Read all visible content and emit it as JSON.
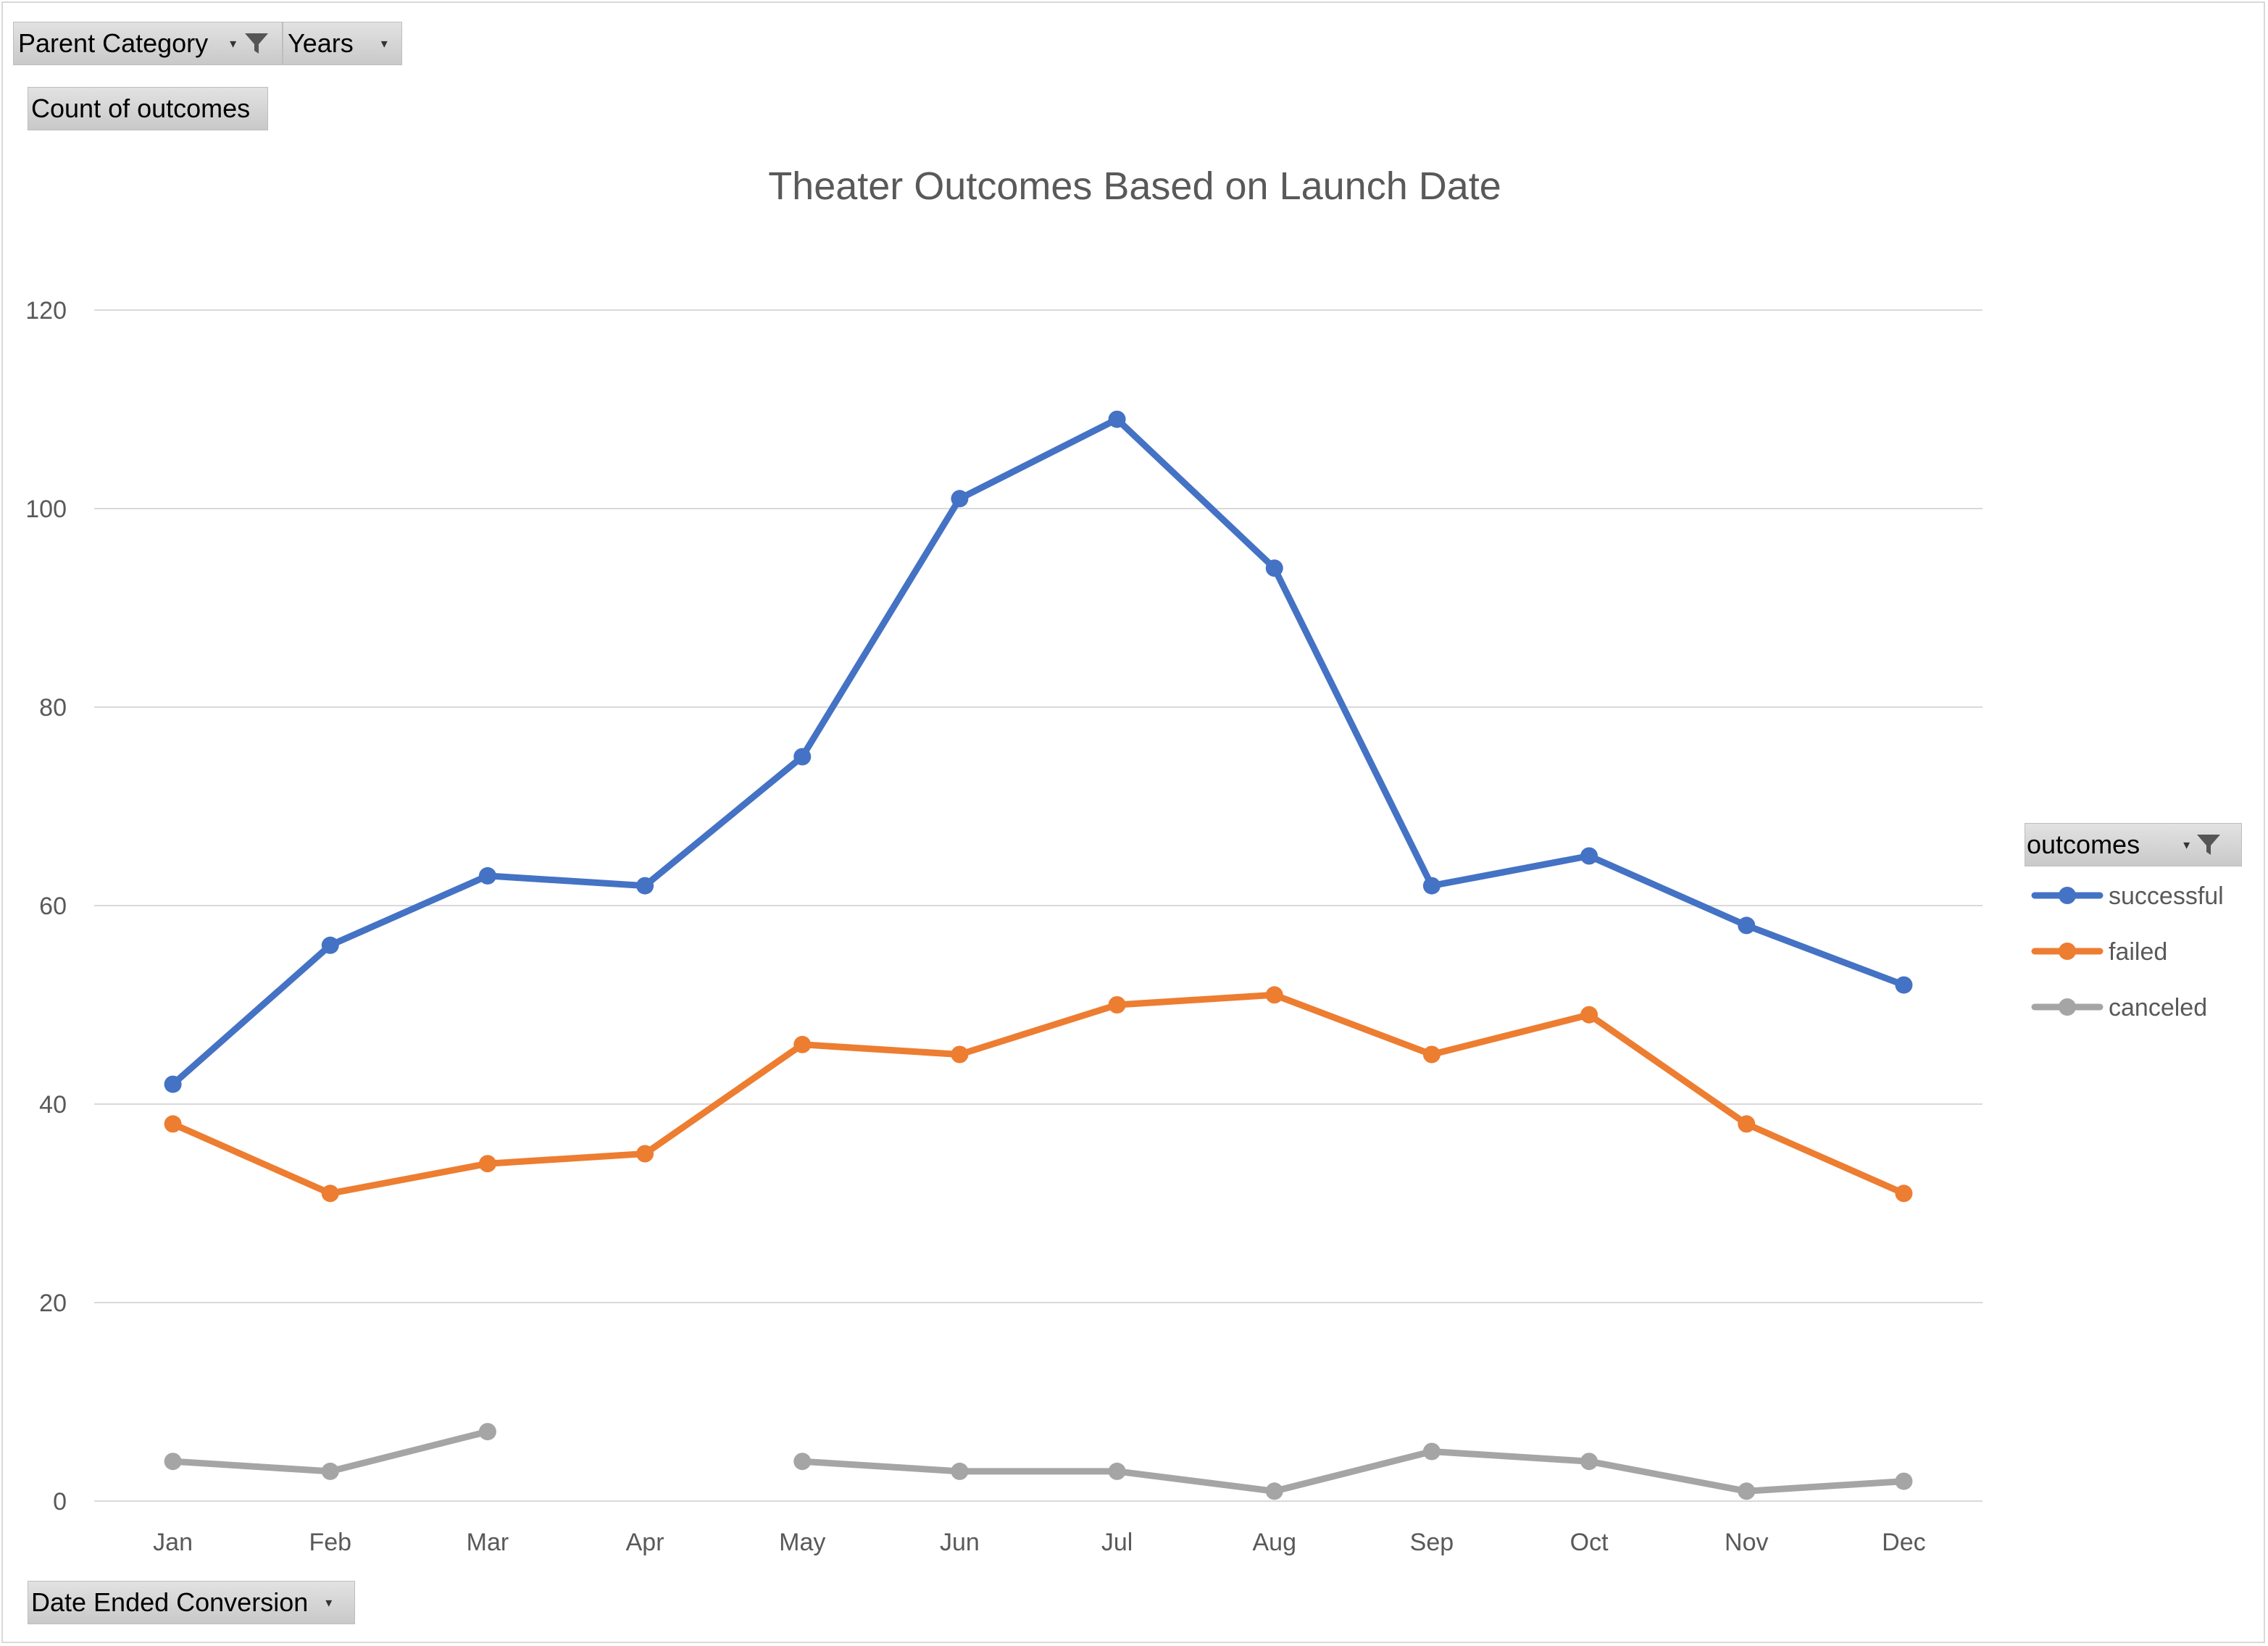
{
  "field_buttons": {
    "parent_category": "Parent Category",
    "years": "Years",
    "values_field": "Count of outcomes",
    "axis_field": "Date Ended Conversion",
    "legend_field": "outcomes"
  },
  "chart_data": {
    "type": "line",
    "title": "Theater Outcomes Based on Launch Date",
    "xlabel": "",
    "ylabel": "",
    "categories": [
      "Jan",
      "Feb",
      "Mar",
      "Apr",
      "May",
      "Jun",
      "Jul",
      "Aug",
      "Sep",
      "Oct",
      "Nov",
      "Dec"
    ],
    "ylim": [
      0,
      120
    ],
    "yticks": [
      0,
      20,
      40,
      60,
      80,
      100,
      120
    ],
    "grid": true,
    "legend_position": "right",
    "series": [
      {
        "name": "successful",
        "color": "#4472C4",
        "values": [
          42,
          56,
          63,
          62,
          75,
          101,
          109,
          94,
          62,
          65,
          58,
          52
        ]
      },
      {
        "name": "failed",
        "color": "#ED7D31",
        "values": [
          38,
          31,
          34,
          35,
          46,
          45,
          50,
          51,
          45,
          49,
          38,
          31
        ]
      },
      {
        "name": "canceled",
        "color": "#A5A5A5",
        "values": [
          4,
          3,
          7,
          null,
          4,
          3,
          3,
          1,
          5,
          4,
          1,
          2
        ]
      }
    ]
  }
}
